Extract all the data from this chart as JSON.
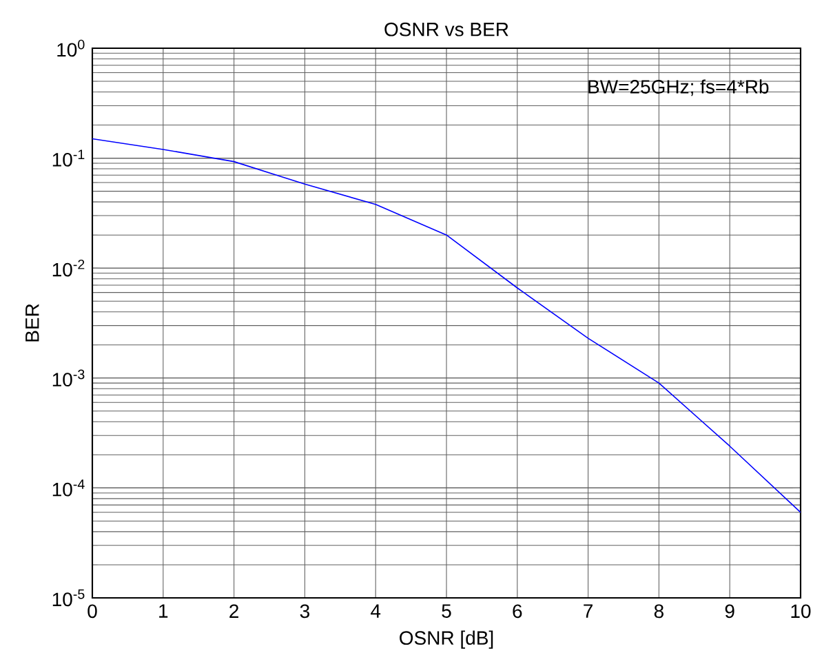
{
  "chart_data": {
    "type": "line",
    "title": "OSNR vs BER",
    "xlabel": "OSNR [dB]",
    "ylabel": "BER",
    "annotations": [
      "BW=25GHz; fs=4*Rb"
    ],
    "x": [
      0,
      1,
      2,
      3,
      4,
      5,
      6,
      7,
      8,
      9,
      10
    ],
    "series": [
      {
        "color": "#0000ff",
        "values": [
          0.15,
          0.12,
          0.093,
          0.058,
          0.038,
          0.02,
          0.0066,
          0.0023,
          0.0009,
          0.00024,
          6e-05
        ]
      }
    ],
    "log": "y",
    "grid": true,
    "marker": "none",
    "line_style": "solid",
    "xlim": [
      0,
      10
    ],
    "ylim": [
      1e-05,
      1
    ],
    "xticks": [
      0,
      1,
      2,
      3,
      4,
      5,
      6,
      7,
      8,
      9,
      10
    ],
    "yticks": [
      {
        "value": 1e-05,
        "label": "10$^{-5}$"
      },
      {
        "value": 0.0001,
        "label": "10$^{-4}$"
      },
      {
        "value": 0.001,
        "label": "10$^{-3}$"
      },
      {
        "value": 0.01,
        "label": "10$^{-2}$"
      },
      {
        "value": 0.1,
        "label": "10$^{-1}$"
      },
      {
        "value": 1,
        "label": "10$^{0}$"
      }
    ]
  }
}
